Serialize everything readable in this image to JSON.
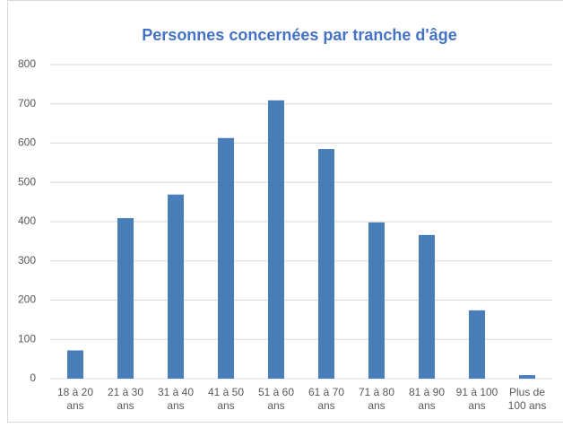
{
  "chart_data": {
    "type": "bar",
    "title": "Personnes concernées par tranche d'âge",
    "categories": [
      "18 à 20 ans",
      "21 à 30 ans",
      "31 à 40 ans",
      "41 à 50 ans",
      "51 à 60 ans",
      "61 à 70 ans",
      "71 à 80 ans",
      "81 à 90 ans",
      "91 à 100 ans",
      "Plus de 100 ans"
    ],
    "values": [
      72,
      409,
      469,
      613,
      709,
      585,
      398,
      366,
      174,
      9
    ],
    "color": "#4a7ebb",
    "ylim": [
      0,
      800
    ],
    "yticks": [
      0,
      100,
      200,
      300,
      400,
      500,
      600,
      700,
      800
    ],
    "grid": true
  }
}
